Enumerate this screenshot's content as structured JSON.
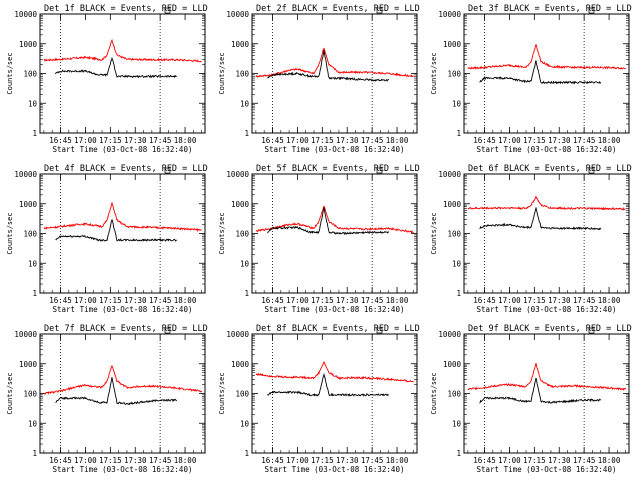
{
  "chart_data": [
    {
      "type": "line",
      "title": "Det 1f BLACK = Events, RED = LLD",
      "xlabel": "Start Time (03-Oct-08 16:32:40)",
      "ylabel": "Counts/sec",
      "x_ticks": [
        "16:45",
        "17:00",
        "17:15",
        "17:30",
        "17:45",
        "18:00"
      ],
      "y_ticks": [
        "1",
        "10",
        "100",
        "1000",
        "10000"
      ],
      "ylim": [
        1,
        10000
      ],
      "y_scale": "log",
      "xlim": [
        "16:32:40",
        "18:12"
      ],
      "markers": [
        "16:45",
        "17:45"
      ],
      "series": [
        {
          "color": "#ff0000",
          "x": [
            "16:35",
            "16:45",
            "16:55",
            "17:00",
            "17:10",
            "17:13",
            "17:16",
            "17:19",
            "17:25",
            "17:40",
            "17:55",
            "18:10"
          ],
          "values": [
            280,
            300,
            330,
            350,
            290,
            420,
            1300,
            420,
            300,
            290,
            290,
            260
          ]
        },
        {
          "color": "#000000",
          "x": [
            "16:42",
            "16:45",
            "17:00",
            "17:08",
            "17:13",
            "17:16",
            "17:19",
            "17:25",
            "17:45",
            "17:55"
          ],
          "values": [
            100,
            120,
            120,
            90,
            90,
            330,
            80,
            80,
            80,
            80
          ]
        }
      ]
    },
    {
      "type": "line",
      "title": "Det 2f BLACK = Events, RED = LLD",
      "xlabel": "Start Time (03-Oct-08 16:32:40)",
      "ylabel": "Counts/sec",
      "x_ticks": [
        "16:45",
        "17:00",
        "17:15",
        "17:30",
        "17:45",
        "18:00"
      ],
      "y_ticks": [
        "1",
        "10",
        "100",
        "1000",
        "10000"
      ],
      "ylim": [
        1,
        10000
      ],
      "y_scale": "log",
      "xlim": [
        "16:32:40",
        "18:12"
      ],
      "markers": [
        "16:45",
        "17:45"
      ],
      "series": [
        {
          "color": "#ff0000",
          "x": [
            "16:35",
            "16:45",
            "16:55",
            "17:00",
            "17:10",
            "17:13",
            "17:16",
            "17:19",
            "17:25",
            "17:40",
            "17:55",
            "18:10"
          ],
          "values": [
            80,
            90,
            130,
            140,
            100,
            200,
            750,
            200,
            110,
            110,
            100,
            80
          ]
        },
        {
          "color": "#000000",
          "x": [
            "16:42",
            "16:45",
            "17:00",
            "17:08",
            "17:13",
            "17:16",
            "17:19",
            "17:25",
            "17:45",
            "17:55"
          ],
          "values": [
            70,
            90,
            100,
            80,
            80,
            600,
            70,
            70,
            60,
            60
          ]
        }
      ]
    },
    {
      "type": "line",
      "title": "Det 3f BLACK = Events, RED = LLD",
      "xlabel": "Start Time (03-Oct-08 16:32:40)",
      "ylabel": "Counts/sec",
      "x_ticks": [
        "16:45",
        "17:00",
        "17:15",
        "17:30",
        "17:45",
        "18:00"
      ],
      "y_ticks": [
        "1",
        "10",
        "100",
        "1000",
        "10000"
      ],
      "ylim": [
        1,
        10000
      ],
      "y_scale": "log",
      "xlim": [
        "16:32:40",
        "18:12"
      ],
      "markers": [
        "16:45",
        "17:45"
      ],
      "series": [
        {
          "color": "#ff0000",
          "x": [
            "16:35",
            "16:45",
            "16:55",
            "17:00",
            "17:10",
            "17:13",
            "17:16",
            "17:19",
            "17:25",
            "17:40",
            "17:55",
            "18:10"
          ],
          "values": [
            150,
            160,
            180,
            190,
            160,
            250,
            950,
            250,
            170,
            160,
            160,
            150
          ]
        },
        {
          "color": "#000000",
          "x": [
            "16:42",
            "16:45",
            "17:00",
            "17:08",
            "17:13",
            "17:16",
            "17:19",
            "17:25",
            "17:45",
            "17:55"
          ],
          "values": [
            50,
            70,
            70,
            55,
            55,
            260,
            50,
            50,
            50,
            50
          ]
        }
      ]
    },
    {
      "type": "line",
      "title": "Det 4f BLACK = Events, RED = LLD",
      "xlabel": "Start Time (03-Oct-08 16:32:40)",
      "ylabel": "Counts/sec",
      "x_ticks": [
        "16:45",
        "17:00",
        "17:15",
        "17:30",
        "17:45",
        "18:00"
      ],
      "y_ticks": [
        "1",
        "10",
        "100",
        "1000",
        "10000"
      ],
      "ylim": [
        1,
        10000
      ],
      "y_scale": "log",
      "xlim": [
        "16:32:40",
        "18:12"
      ],
      "markers": [
        "16:45",
        "17:45"
      ],
      "series": [
        {
          "color": "#ff0000",
          "x": [
            "16:35",
            "16:45",
            "16:55",
            "17:00",
            "17:10",
            "17:13",
            "17:16",
            "17:19",
            "17:25",
            "17:40",
            "17:55",
            "18:10"
          ],
          "values": [
            150,
            170,
            200,
            210,
            170,
            280,
            1050,
            280,
            170,
            160,
            150,
            130
          ]
        },
        {
          "color": "#000000",
          "x": [
            "16:42",
            "16:45",
            "17:00",
            "17:08",
            "17:13",
            "17:16",
            "17:19",
            "17:25",
            "17:45",
            "17:55"
          ],
          "values": [
            60,
            80,
            80,
            60,
            60,
            300,
            60,
            60,
            60,
            60
          ]
        }
      ]
    },
    {
      "type": "line",
      "title": "Det 5f BLACK = Events, RED = LLD",
      "xlabel": "Start Time (03-Oct-08 16:32:40)",
      "ylabel": "Counts/sec",
      "x_ticks": [
        "16:45",
        "17:00",
        "17:15",
        "17:30",
        "17:45",
        "18:00"
      ],
      "y_ticks": [
        "1",
        "10",
        "100",
        "1000",
        "10000"
      ],
      "ylim": [
        1,
        10000
      ],
      "y_scale": "log",
      "xlim": [
        "16:32:40",
        "18:12"
      ],
      "markers": [
        "16:45",
        "17:45"
      ],
      "series": [
        {
          "color": "#ff0000",
          "x": [
            "16:35",
            "16:45",
            "16:55",
            "17:00",
            "17:10",
            "17:13",
            "17:16",
            "17:19",
            "17:25",
            "17:40",
            "17:55",
            "18:10"
          ],
          "values": [
            120,
            150,
            200,
            210,
            150,
            250,
            850,
            250,
            150,
            140,
            150,
            110
          ]
        },
        {
          "color": "#000000",
          "x": [
            "16:42",
            "16:45",
            "17:00",
            "17:08",
            "17:13",
            "17:16",
            "17:19",
            "17:25",
            "17:45",
            "17:55"
          ],
          "values": [
            110,
            150,
            160,
            110,
            110,
            750,
            110,
            100,
            110,
            110
          ]
        }
      ]
    },
    {
      "type": "line",
      "title": "Det 6f BLACK = Events, RED = LLD",
      "xlabel": "Start Time (03-Oct-08 16:32:40)",
      "ylabel": "Counts/sec",
      "x_ticks": [
        "16:45",
        "17:00",
        "17:15",
        "17:30",
        "17:45",
        "18:00"
      ],
      "y_ticks": [
        "1",
        "10",
        "100",
        "1000",
        "10000"
      ],
      "ylim": [
        1,
        10000
      ],
      "y_scale": "log",
      "xlim": [
        "16:32:40",
        "18:12"
      ],
      "markers": [
        "16:45",
        "17:45"
      ],
      "series": [
        {
          "color": "#ff0000",
          "x": [
            "16:35",
            "16:45",
            "16:55",
            "17:00",
            "17:10",
            "17:13",
            "17:16",
            "17:19",
            "17:25",
            "17:40",
            "17:55",
            "18:10"
          ],
          "values": [
            700,
            710,
            720,
            730,
            700,
            900,
            1700,
            900,
            720,
            700,
            690,
            660
          ]
        },
        {
          "color": "#000000",
          "x": [
            "16:42",
            "16:45",
            "17:00",
            "17:08",
            "17:13",
            "17:16",
            "17:19",
            "17:25",
            "17:45",
            "17:55"
          ],
          "values": [
            150,
            180,
            200,
            160,
            160,
            700,
            160,
            150,
            150,
            140
          ]
        }
      ]
    },
    {
      "type": "line",
      "title": "Det 7f BLACK = Events, RED = LLD",
      "xlabel": "Start Time (03-Oct-08 16:32:40)",
      "ylabel": "Counts/sec",
      "x_ticks": [
        "16:45",
        "17:00",
        "17:15",
        "17:30",
        "17:45",
        "18:00"
      ],
      "y_ticks": [
        "1",
        "10",
        "100",
        "1000",
        "10000"
      ],
      "ylim": [
        1,
        10000
      ],
      "y_scale": "log",
      "xlim": [
        "16:32:40",
        "18:12"
      ],
      "markers": [
        "16:45",
        "17:45"
      ],
      "series": [
        {
          "color": "#ff0000",
          "x": [
            "16:35",
            "16:45",
            "16:55",
            "17:00",
            "17:10",
            "17:13",
            "17:16",
            "17:19",
            "17:25",
            "17:40",
            "17:55",
            "18:10"
          ],
          "values": [
            100,
            120,
            170,
            190,
            160,
            260,
            900,
            260,
            160,
            180,
            150,
            120
          ]
        },
        {
          "color": "#000000",
          "x": [
            "16:42",
            "16:45",
            "17:00",
            "17:08",
            "17:13",
            "17:16",
            "17:19",
            "17:25",
            "17:45",
            "17:55"
          ],
          "values": [
            50,
            70,
            70,
            50,
            50,
            330,
            50,
            45,
            60,
            60
          ]
        }
      ]
    },
    {
      "type": "line",
      "title": "Det 8f BLACK = Events, RED = LLD",
      "xlabel": "Start Time (03-Oct-08 16:32:40)",
      "ylabel": "Counts/sec",
      "x_ticks": [
        "16:45",
        "17:00",
        "17:15",
        "17:30",
        "17:45",
        "18:00"
      ],
      "y_ticks": [
        "1",
        "10",
        "100",
        "1000",
        "10000"
      ],
      "ylim": [
        1,
        10000
      ],
      "y_scale": "log",
      "xlim": [
        "16:32:40",
        "18:12"
      ],
      "markers": [
        "16:45",
        "17:45"
      ],
      "series": [
        {
          "color": "#ff0000",
          "x": [
            "16:35",
            "16:45",
            "16:55",
            "17:00",
            "17:10",
            "17:13",
            "17:16",
            "17:19",
            "17:25",
            "17:40",
            "17:55",
            "18:10"
          ],
          "values": [
            450,
            380,
            350,
            360,
            330,
            500,
            1150,
            500,
            330,
            340,
            300,
            250
          ]
        },
        {
          "color": "#000000",
          "x": [
            "16:42",
            "16:45",
            "17:00",
            "17:08",
            "17:13",
            "17:16",
            "17:19",
            "17:25",
            "17:45",
            "17:55"
          ],
          "values": [
            90,
            110,
            110,
            90,
            90,
            450,
            90,
            90,
            90,
            90
          ]
        }
      ]
    },
    {
      "type": "line",
      "title": "Det 9f BLACK = Events, RED = LLD",
      "xlabel": "Start Time (03-Oct-08 16:32:40)",
      "ylabel": "Counts/sec",
      "x_ticks": [
        "16:45",
        "17:00",
        "17:15",
        "17:30",
        "17:45",
        "18:00"
      ],
      "y_ticks": [
        "1",
        "10",
        "100",
        "1000",
        "10000"
      ],
      "ylim": [
        1,
        10000
      ],
      "y_scale": "log",
      "xlim": [
        "16:32:40",
        "18:12"
      ],
      "markers": [
        "16:45",
        "17:45"
      ],
      "series": [
        {
          "color": "#ff0000",
          "x": [
            "16:35",
            "16:45",
            "16:55",
            "17:00",
            "17:10",
            "17:13",
            "17:16",
            "17:19",
            "17:25",
            "17:40",
            "17:55",
            "18:10"
          ],
          "values": [
            140,
            160,
            190,
            200,
            170,
            270,
            1000,
            270,
            170,
            180,
            160,
            140
          ]
        },
        {
          "color": "#000000",
          "x": [
            "16:42",
            "16:45",
            "17:00",
            "17:08",
            "17:13",
            "17:16",
            "17:19",
            "17:25",
            "17:45",
            "17:55"
          ],
          "values": [
            50,
            70,
            70,
            55,
            55,
            330,
            55,
            50,
            60,
            60
          ]
        }
      ]
    }
  ]
}
